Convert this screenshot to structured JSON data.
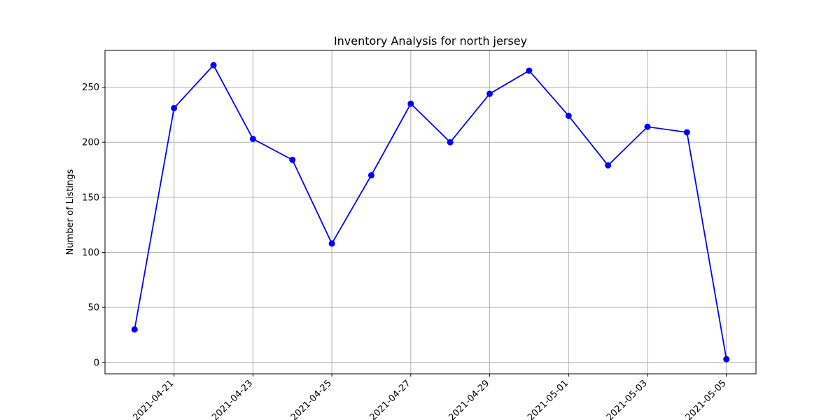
{
  "chart_data": {
    "type": "line",
    "title": "Inventory Analysis for north jersey",
    "xlabel": "",
    "ylabel": "Number of Listings",
    "x": [
      "2021-04-20",
      "2021-04-21",
      "2021-04-22",
      "2021-04-23",
      "2021-04-24",
      "2021-04-25",
      "2021-04-26",
      "2021-04-27",
      "2021-04-28",
      "2021-04-29",
      "2021-04-30",
      "2021-05-01",
      "2021-05-02",
      "2021-05-03",
      "2021-05-04",
      "2021-05-05"
    ],
    "series": [
      {
        "values": [
          30,
          231,
          270,
          203,
          184,
          108,
          170,
          235,
          200,
          244,
          265,
          224,
          179,
          214,
          209,
          3
        ]
      }
    ],
    "x_ticks": [
      "2021-04-21",
      "2021-04-23",
      "2021-04-25",
      "2021-04-27",
      "2021-04-29",
      "2021-05-01",
      "2021-05-03",
      "2021-05-05"
    ],
    "y_ticks": [
      0,
      50,
      100,
      150,
      200,
      250
    ],
    "xlim": [
      "2021-04-19T06:00",
      "2021-05-05T18:00"
    ],
    "ylim": [
      -10.3,
      283.4
    ],
    "grid": true,
    "legend": "none",
    "colors": {
      "line": "#0000ff",
      "marker": "#0000ff",
      "grid": "#b0b0b0",
      "axes": "#000000"
    }
  }
}
